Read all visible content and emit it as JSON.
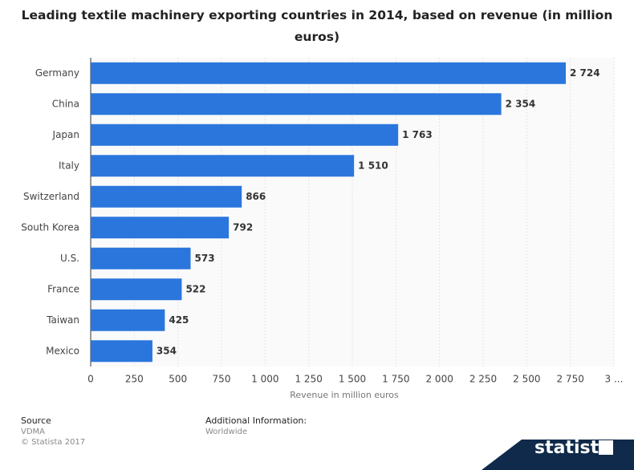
{
  "chart_data": {
    "type": "bar",
    "orientation": "horizontal",
    "title": "Leading textile machinery exporting countries in 2014, based on revenue (in million euros)",
    "categories": [
      "Germany",
      "China",
      "Japan",
      "Italy",
      "Switzerland",
      "South Korea",
      "U.S.",
      "France",
      "Taiwan",
      "Mexico"
    ],
    "values": [
      2724,
      2354,
      1763,
      1510,
      866,
      792,
      573,
      522,
      425,
      354
    ],
    "value_labels": [
      "2 724",
      "2 354",
      "1 763",
      "1 510",
      "866",
      "792",
      "573",
      "522",
      "425",
      "354"
    ],
    "color": "#2a76dd",
    "xlabel": "Revenue in million euros",
    "xlim": [
      0,
      3000
    ],
    "xticks": [
      0,
      250,
      500,
      750,
      {
        "value": 1000,
        "label": "1 000"
      },
      {
        "value": 1250,
        "label": "1 250"
      },
      {
        "value": 1500,
        "label": "1 500"
      },
      {
        "value": 1750,
        "label": "1 750"
      },
      {
        "value": 2000,
        "label": "2 000"
      },
      {
        "value": 2250,
        "label": "2 250"
      },
      {
        "value": 2500,
        "label": "2 500"
      },
      {
        "value": 2750,
        "label": "2 750"
      },
      {
        "value": 3000,
        "label": "3 ..."
      }
    ],
    "grid": true
  },
  "footer": {
    "source_title": "Source",
    "source": "VDMA",
    "copyright": "© Statista 2017",
    "info_title": "Additional Information:",
    "info": "Worldwide",
    "logo": "statista"
  }
}
